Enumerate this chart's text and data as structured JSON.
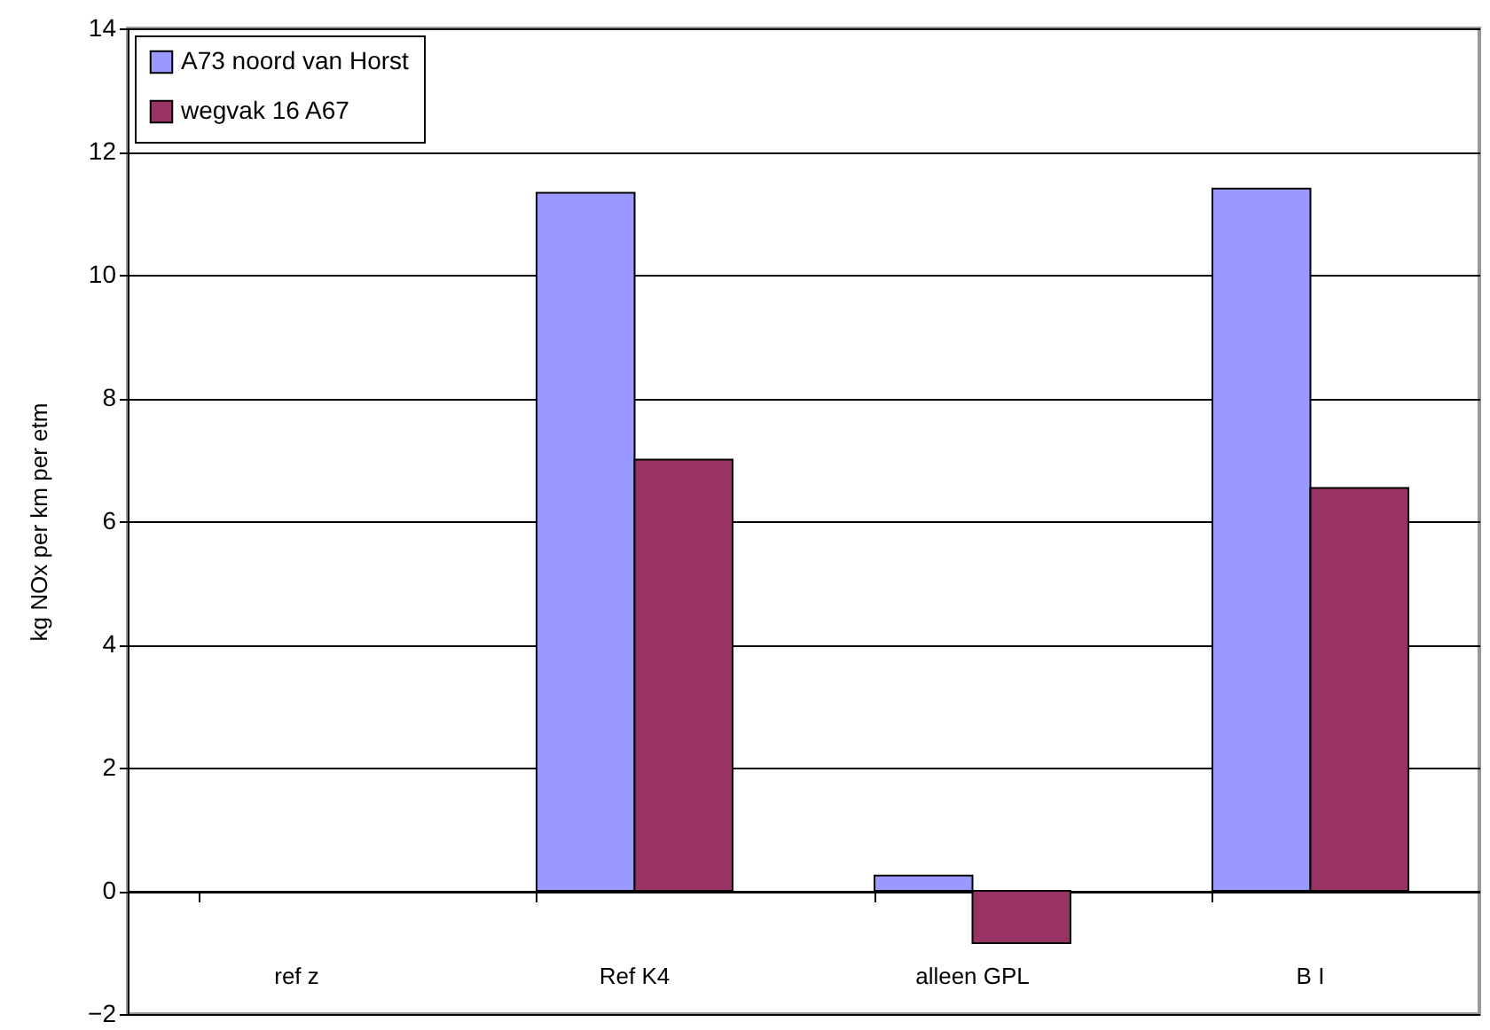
{
  "chart_data": {
    "type": "bar",
    "ylabel": "kg NOx per km per etm",
    "categories": [
      "ref z",
      "Ref K4",
      "alleen GPL",
      "B I"
    ],
    "series": [
      {
        "name": "A73 noord van Horst",
        "color": "#9999ff",
        "values": [
          null,
          11.33,
          0.25,
          11.4
        ]
      },
      {
        "name": "wegvak 16 A67",
        "color": "#993366",
        "values": [
          null,
          7.0,
          -0.85,
          6.54
        ]
      }
    ],
    "ylim": [
      -2,
      14
    ],
    "yticks": [
      -2,
      0,
      2,
      4,
      6,
      8,
      10,
      12,
      14
    ],
    "grid": "y",
    "legend": "top left"
  }
}
